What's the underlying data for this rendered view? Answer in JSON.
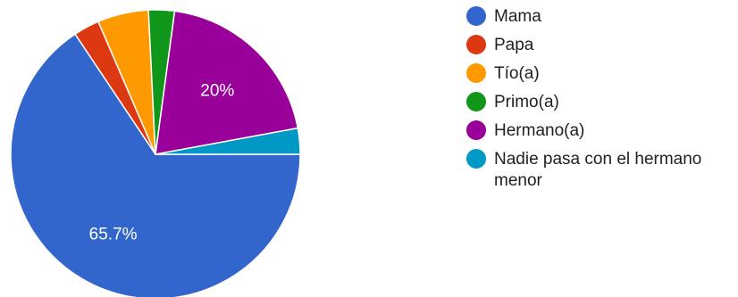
{
  "chart_data": {
    "type": "pie",
    "start_angle_deg": 0,
    "direction": "clockwise",
    "slices": [
      {
        "label": "Mama",
        "value": 65.7,
        "color": "#3366cc",
        "data_label": "65.7%"
      },
      {
        "label": "Papa",
        "value": 2.9,
        "color": "#dc3912",
        "data_label": ""
      },
      {
        "label": "Tío(a)",
        "value": 5.7,
        "color": "#ff9900",
        "data_label": ""
      },
      {
        "label": "Primo(a)",
        "value": 2.9,
        "color": "#109618",
        "data_label": ""
      },
      {
        "label": "Hermano(a)",
        "value": 20,
        "color": "#990099",
        "data_label": "20%"
      },
      {
        "label": "Nadie pasa con el hermano menor",
        "value": 2.9,
        "color": "#0099c6",
        "data_label": ""
      }
    ],
    "legend_position": "right"
  }
}
